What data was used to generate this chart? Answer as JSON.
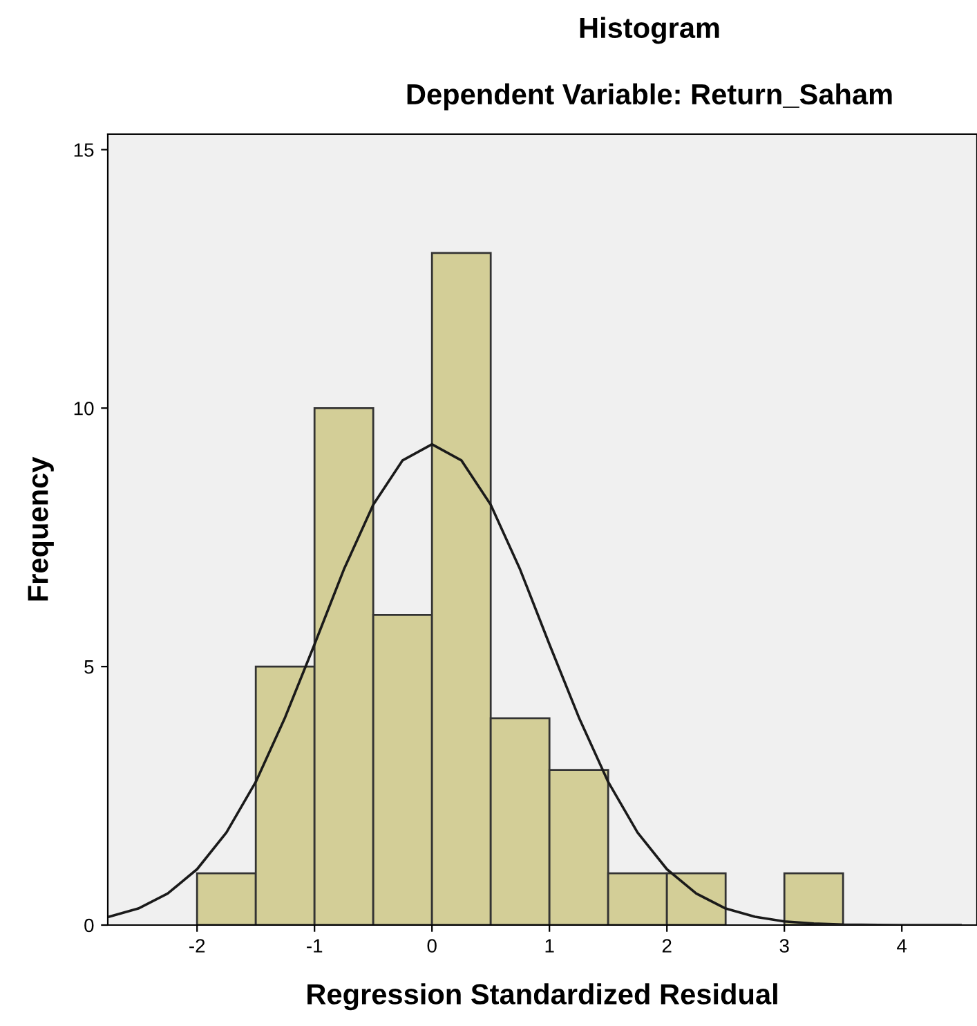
{
  "chart_data": {
    "type": "histogram",
    "title": "Histogram",
    "subtitle": "Dependent Variable: Return_Saham",
    "xlabel": "Regression Standardized Residual",
    "ylabel": "Frequency",
    "xlim": [
      -2.76,
      4.64
    ],
    "ylim": [
      0,
      15.3
    ],
    "xticks": [
      -2,
      -1,
      0,
      1,
      2,
      3,
      4
    ],
    "yticks": [
      0,
      5,
      10,
      15
    ],
    "grid": false,
    "legend": false,
    "series": [
      {
        "color": "#d3ce97",
        "bins": [
          -2,
          -1.5,
          -1,
          -0.5,
          0,
          0.5,
          1,
          1.5,
          2,
          2.5,
          3,
          3.5
        ],
        "values": [
          1,
          5,
          10,
          6,
          13,
          4,
          3,
          1,
          1,
          0,
          1
        ]
      },
      {
        "type": "line",
        "color": "#1a1a1a",
        "x": [
          -2.75,
          -2.5,
          -2.25,
          -2,
          -1.75,
          -1.5,
          -1.25,
          -1,
          -0.75,
          -0.5,
          -0.25,
          0,
          0.25,
          0.5,
          0.75,
          1,
          1.25,
          1.5,
          1.75,
          2,
          2.25,
          2.5,
          2.75,
          3,
          3.25,
          3.5,
          4,
          4.5
        ],
        "values": [
          0.16,
          0.32,
          0.61,
          1.08,
          1.79,
          2.77,
          4.02,
          5.43,
          6.88,
          8.13,
          8.99,
          9.3,
          8.99,
          8.13,
          6.88,
          5.43,
          4.02,
          2.77,
          1.79,
          1.08,
          0.61,
          0.32,
          0.16,
          0.07,
          0.03,
          0.01,
          0,
          0
        ]
      }
    ]
  }
}
